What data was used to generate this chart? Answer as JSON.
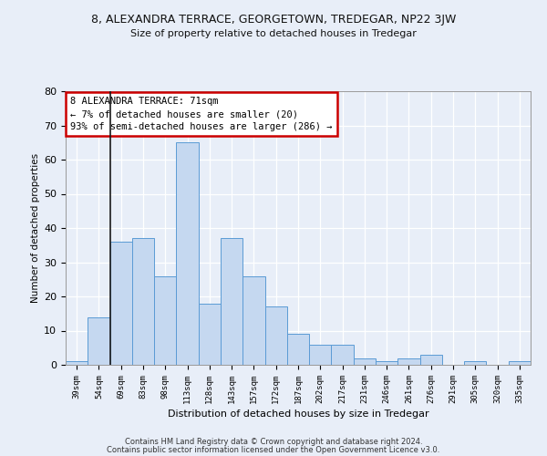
{
  "title": "8, ALEXANDRA TERRACE, GEORGETOWN, TREDEGAR, NP22 3JW",
  "subtitle": "Size of property relative to detached houses in Tredegar",
  "xlabel": "Distribution of detached houses by size in Tredegar",
  "ylabel": "Number of detached properties",
  "footer1": "Contains HM Land Registry data © Crown copyright and database right 2024.",
  "footer2": "Contains public sector information licensed under the Open Government Licence v3.0.",
  "bar_color": "#c5d8f0",
  "bar_edge_color": "#5b9bd5",
  "categories": [
    "39sqm",
    "54sqm",
    "69sqm",
    "83sqm",
    "98sqm",
    "113sqm",
    "128sqm",
    "143sqm",
    "157sqm",
    "172sqm",
    "187sqm",
    "202sqm",
    "217sqm",
    "231sqm",
    "246sqm",
    "261sqm",
    "276sqm",
    "291sqm",
    "305sqm",
    "320sqm",
    "335sqm"
  ],
  "values": [
    1,
    14,
    36,
    37,
    26,
    65,
    18,
    37,
    26,
    17,
    9,
    6,
    6,
    2,
    1,
    2,
    3,
    0,
    1,
    0,
    1
  ],
  "ylim": [
    0,
    80
  ],
  "yticks": [
    0,
    10,
    20,
    30,
    40,
    50,
    60,
    70,
    80
  ],
  "annotation_text": "8 ALEXANDRA TERRACE: 71sqm\n← 7% of detached houses are smaller (20)\n93% of semi-detached houses are larger (286) →",
  "annotation_box_color": "#ffffff",
  "annotation_box_edge_color": "#cc0000",
  "bg_color": "#e8eef8",
  "grid_color": "#ffffff",
  "line_color": "#1a1a1a",
  "property_line_x": 1.5
}
